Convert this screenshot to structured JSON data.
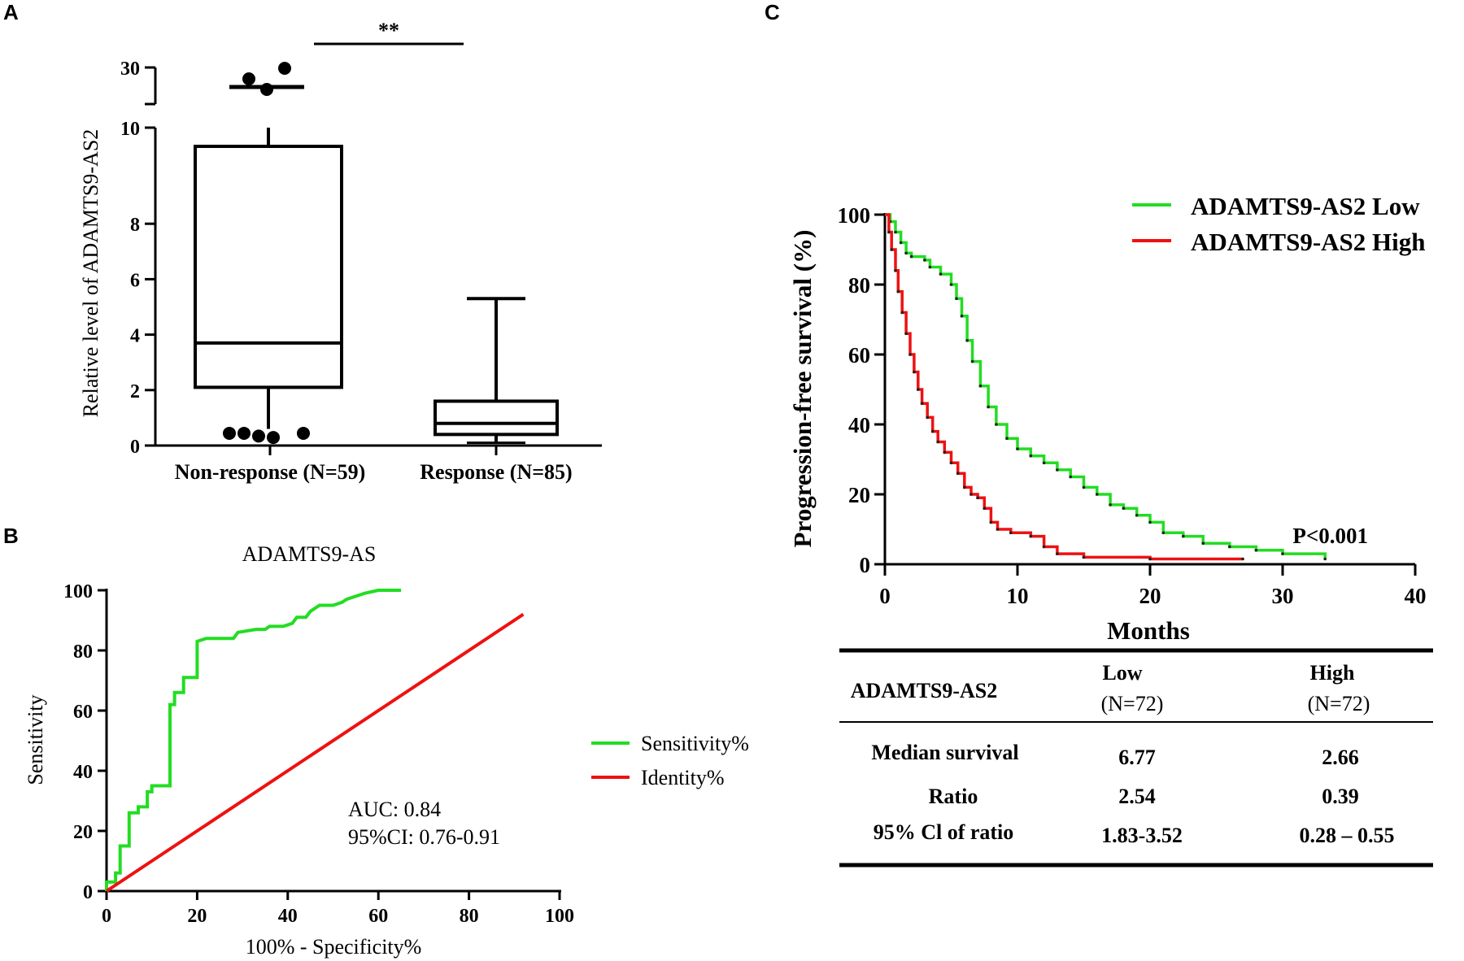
{
  "panels": {
    "a": "A",
    "b": "B",
    "c": "C"
  },
  "chart_data": [
    {
      "id": "A",
      "type": "box",
      "title": "",
      "ylabel": "Relative level of ADAMTS9-AS2",
      "significance": "**",
      "yticks_lower": [
        "0",
        "2",
        "4",
        "6",
        "8",
        "10"
      ],
      "ytick_upper": "30",
      "ylim_lower": [
        0,
        10
      ],
      "categories": [
        "Non-response (N=59)",
        "Response (N=85)"
      ],
      "boxes": [
        {
          "name": "Non-response (N=59)",
          "whisker_low": 0.6,
          "q1": 2.1,
          "median": 3.7,
          "q3": 9.2,
          "whisker_high": 10.0,
          "upper_segment_whisker": 22,
          "outliers_low": [
            0.5,
            0.5,
            0.4,
            0.35,
            0.5
          ],
          "outliers_high": [
            26,
            29,
            21
          ]
        },
        {
          "name": "Response (N=85)",
          "whisker_low": 0.1,
          "q1": 0.4,
          "median": 0.8,
          "q3": 1.6,
          "whisker_high": 5.3,
          "outliers_low": [],
          "outliers_high": []
        }
      ]
    },
    {
      "id": "B",
      "type": "line",
      "title": "ADAMTS9-AS",
      "xlabel": "100% - Specificity%",
      "ylabel": "Sensitivity",
      "xticks": [
        "0",
        "20",
        "40",
        "60",
        "80",
        "100"
      ],
      "yticks": [
        "0",
        "20",
        "40",
        "60",
        "80",
        "100"
      ],
      "xlim": [
        0,
        100
      ],
      "ylim": [
        0,
        100
      ],
      "annotation": [
        "AUC: 0.84",
        "95%CI: 0.76-0.91"
      ],
      "legend": [
        "Sensitivity%",
        "Identity%"
      ],
      "series": [
        {
          "name": "Sensitivity%",
          "color": "#22dd22",
          "x": [
            0,
            0,
            2,
            2,
            3,
            3,
            5,
            5,
            7,
            7,
            9,
            9,
            10,
            10,
            14,
            14,
            15,
            15,
            17,
            17,
            20,
            20,
            22,
            28,
            29,
            33,
            35,
            36,
            39,
            41,
            42,
            44,
            45,
            47,
            50,
            52,
            53,
            55,
            57,
            60,
            65
          ],
          "y": [
            0,
            3,
            3,
            6,
            6,
            15,
            15,
            26,
            26,
            28,
            28,
            33,
            33,
            35,
            35,
            62,
            62,
            66,
            66,
            71,
            71,
            83,
            84,
            84,
            86,
            87,
            87,
            88,
            88,
            89,
            91,
            91,
            93,
            95,
            95,
            96,
            97,
            98,
            99,
            100,
            100
          ]
        },
        {
          "name": "Identity%",
          "color": "#ee1111",
          "x": [
            0,
            92
          ],
          "y": [
            0,
            92
          ]
        }
      ]
    },
    {
      "id": "C",
      "type": "line",
      "title": "",
      "xlabel": "Months",
      "ylabel": "Progression-free survival (%)",
      "xticks": [
        "0",
        "10",
        "20",
        "30",
        "40"
      ],
      "yticks": [
        "0",
        "20",
        "40",
        "60",
        "80",
        "100"
      ],
      "xlim": [
        0,
        40
      ],
      "ylim": [
        0,
        100
      ],
      "annotation": "P<0.001",
      "legend": [
        "ADAMTS9-AS2 Low",
        "ADAMTS9-AS2 High"
      ],
      "series": [
        {
          "name": "ADAMTS9-AS2 Low",
          "color": "#22dd22",
          "x": [
            0,
            0.4,
            0.8,
            1.2,
            1.6,
            2.0,
            3.0,
            3.4,
            4.2,
            5.0,
            5.4,
            5.8,
            6.2,
            6.6,
            7.2,
            7.8,
            8.4,
            9.2,
            10.0,
            11.0,
            12.0,
            13.0,
            14.0,
            15.0,
            16.0,
            17.0,
            18.0,
            19.0,
            20.0,
            21.0,
            22.5,
            24.0,
            26.0,
            28.0,
            30.0,
            33.2
          ],
          "y": [
            100,
            98,
            95,
            92,
            89,
            88,
            87,
            85,
            83,
            80,
            76,
            71,
            64,
            58,
            51,
            45,
            40,
            36,
            33,
            31,
            29,
            27,
            25,
            22,
            20,
            17,
            16,
            14,
            12,
            9,
            8,
            6,
            5,
            4,
            3,
            1.5
          ]
        },
        {
          "name": "ADAMTS9-AS2 High",
          "color": "#ee1111",
          "x": [
            0,
            0.3,
            0.5,
            0.8,
            1.0,
            1.3,
            1.6,
            1.9,
            2.2,
            2.5,
            2.8,
            3.2,
            3.6,
            4.0,
            4.5,
            5.0,
            5.5,
            6.0,
            6.5,
            7.0,
            7.5,
            8.0,
            8.5,
            9.5,
            11.0,
            12.0,
            13.0,
            15.0,
            20.0,
            27.0
          ],
          "y": [
            100,
            95,
            90,
            84,
            78,
            72,
            66,
            60,
            55,
            50,
            46,
            42,
            38,
            35,
            32,
            29,
            26,
            22,
            20,
            19,
            16,
            12,
            10,
            9,
            8,
            5,
            3,
            2,
            1.5,
            1.5
          ]
        }
      ]
    }
  ],
  "table_c": {
    "header_group": "ADAMTS9-AS2",
    "col_low": "Low",
    "col_low_n": "(N=72)",
    "col_high": "High",
    "col_high_n": "(N=72)",
    "rows": [
      {
        "label": "Median  survival",
        "low": "6.77",
        "high": "2.66"
      },
      {
        "label": "Ratio",
        "low": "2.54",
        "high": "0.39"
      },
      {
        "label": "95% Cl of ratio",
        "low": "1.83-3.52",
        "high": "0.28 – 0.55"
      }
    ]
  }
}
